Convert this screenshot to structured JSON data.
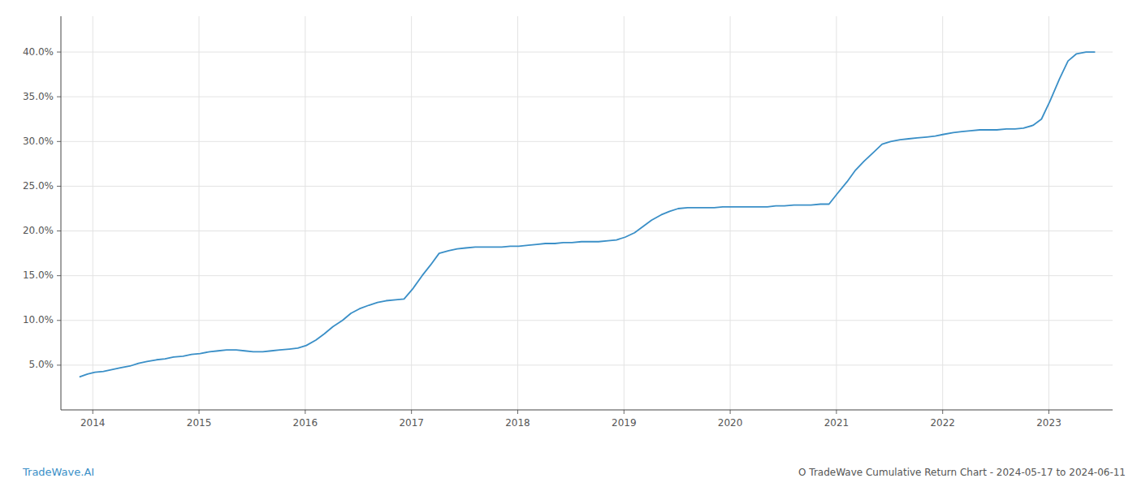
{
  "chart_data": {
    "type": "line",
    "title": "O TradeWave Cumulative Return Chart - 2024-05-17 to 2024-06-11",
    "annotations": [
      "TradeWave.AI"
    ],
    "color": "#3a8fc7",
    "x": [
      2013.88,
      2013.95,
      2014.02,
      2014.1,
      2014.18,
      2014.26,
      2014.35,
      2014.43,
      2014.51,
      2014.6,
      2014.68,
      2014.76,
      2014.85,
      2014.93,
      2015.01,
      2015.1,
      2015.18,
      2015.26,
      2015.35,
      2015.43,
      2015.51,
      2015.6,
      2015.68,
      2015.76,
      2015.85,
      2015.93,
      2016.01,
      2016.1,
      2016.18,
      2016.26,
      2016.35,
      2016.43,
      2016.51,
      2016.6,
      2016.68,
      2016.76,
      2016.85,
      2016.93,
      2017.01,
      2017.1,
      2017.18,
      2017.26,
      2017.35,
      2017.43,
      2017.51,
      2017.6,
      2017.68,
      2017.76,
      2017.85,
      2017.93,
      2018.01,
      2018.1,
      2018.18,
      2018.26,
      2018.35,
      2018.43,
      2018.51,
      2018.6,
      2018.68,
      2018.76,
      2018.85,
      2018.93,
      2019.01,
      2019.1,
      2019.18,
      2019.26,
      2019.35,
      2019.43,
      2019.51,
      2019.6,
      2019.68,
      2019.76,
      2019.85,
      2019.93,
      2020.01,
      2020.1,
      2020.18,
      2020.26,
      2020.35,
      2020.43,
      2020.51,
      2020.6,
      2020.68,
      2020.76,
      2020.85,
      2020.93,
      2021.01,
      2021.1,
      2021.18,
      2021.26,
      2021.35,
      2021.43,
      2021.51,
      2021.6,
      2021.68,
      2021.76,
      2021.85,
      2021.93,
      2022.01,
      2022.1,
      2022.18,
      2022.26,
      2022.35,
      2022.43,
      2022.51,
      2022.6,
      2022.68,
      2022.76,
      2022.85,
      2022.93,
      2023.01,
      2023.1,
      2023.18,
      2023.26,
      2023.35,
      2023.43
    ],
    "values": [
      0.037,
      0.04,
      0.042,
      0.043,
      0.045,
      0.047,
      0.049,
      0.052,
      0.054,
      0.056,
      0.057,
      0.059,
      0.06,
      0.062,
      0.063,
      0.065,
      0.066,
      0.067,
      0.067,
      0.066,
      0.065,
      0.065,
      0.066,
      0.067,
      0.068,
      0.069,
      0.072,
      0.078,
      0.085,
      0.093,
      0.1,
      0.108,
      0.113,
      0.117,
      0.12,
      0.122,
      0.123,
      0.124,
      0.135,
      0.15,
      0.162,
      0.175,
      0.178,
      0.18,
      0.181,
      0.182,
      0.182,
      0.182,
      0.182,
      0.183,
      0.183,
      0.184,
      0.185,
      0.186,
      0.186,
      0.187,
      0.187,
      0.188,
      0.188,
      0.188,
      0.189,
      0.19,
      0.193,
      0.198,
      0.205,
      0.212,
      0.218,
      0.222,
      0.225,
      0.226,
      0.226,
      0.226,
      0.226,
      0.227,
      0.227,
      0.227,
      0.227,
      0.227,
      0.227,
      0.228,
      0.228,
      0.229,
      0.229,
      0.229,
      0.23,
      0.23,
      0.242,
      0.255,
      0.268,
      0.278,
      0.288,
      0.297,
      0.3,
      0.302,
      0.303,
      0.304,
      0.305,
      0.306,
      0.308,
      0.31,
      0.311,
      0.312,
      0.313,
      0.313,
      0.313,
      0.314,
      0.314,
      0.315,
      0.318,
      0.325,
      0.345,
      0.37,
      0.39,
      0.398,
      0.4,
      0.4
    ],
    "xlim": [
      2013.7,
      2023.6
    ],
    "ylim": [
      0.0,
      0.44
    ],
    "xticks": [
      2014,
      2015,
      2016,
      2017,
      2018,
      2019,
      2020,
      2021,
      2022,
      2023
    ],
    "yticks": [
      {
        "value": 0.05,
        "label": "5.0%"
      },
      {
        "value": 0.1,
        "label": "10.0%"
      },
      {
        "value": 0.15,
        "label": "15.0%"
      },
      {
        "value": 0.2,
        "label": "20.0%"
      },
      {
        "value": 0.25,
        "label": "25.0%"
      },
      {
        "value": 0.3,
        "label": "30.0%"
      },
      {
        "value": 0.35,
        "label": "35.0%"
      },
      {
        "value": 0.4,
        "label": "40.0%"
      }
    ],
    "grid": true
  }
}
